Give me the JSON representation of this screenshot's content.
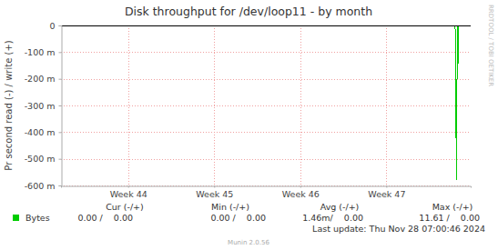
{
  "chart_data": {
    "type": "line",
    "title": "Disk throughput for /dev/loop11 - by month",
    "y_label": "Pr second read (-) / write (+)",
    "side_text": "RRDTOOL / TOBI OETIKER",
    "x": [
      43.22,
      47.8,
      47.815,
      47.825,
      47.83,
      47.84,
      47.845,
      47.855
    ],
    "series": [
      {
        "name": "Bytes",
        "color": "#00cc00",
        "values": [
          0,
          0,
          -0.58,
          0,
          -0.18,
          0,
          0,
          0
        ]
      }
    ],
    "xlim": [
      43.22,
      47.98
    ],
    "xticks": [
      {
        "value": 44,
        "label": "Week 44"
      },
      {
        "value": 45,
        "label": "Week 45"
      },
      {
        "value": 46,
        "label": "Week 46"
      },
      {
        "value": 47,
        "label": "Week 47"
      }
    ],
    "ylim": [
      -0.6,
      0
    ],
    "yticks": [
      {
        "value": -0.6,
        "label": "-600 m"
      },
      {
        "value": -0.5,
        "label": "-500 m"
      },
      {
        "value": -0.4,
        "label": "-400 m"
      },
      {
        "value": -0.3,
        "label": "-300 m"
      },
      {
        "value": -0.2,
        "label": "-200 m"
      },
      {
        "value": -0.1,
        "label": "-100 m"
      },
      0
    ],
    "grid": true,
    "stats": {
      "headers": [
        "Cur (-/+)",
        "Min (-/+)",
        "Avg (-/+)",
        "Max (-/+)"
      ],
      "values": [
        "0.00 /    0.00",
        "0.00 /    0.00",
        "1.46m/    0.00",
        "11.61 /    0.00"
      ]
    },
    "last_update": "Last update: Thu Nov 28 07:00:46 2024",
    "footer": "Munin 2.0.56"
  }
}
